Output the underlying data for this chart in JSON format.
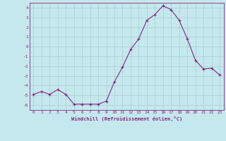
{
  "x": [
    0,
    1,
    2,
    3,
    4,
    5,
    6,
    7,
    8,
    9,
    10,
    11,
    12,
    13,
    14,
    15,
    16,
    17,
    18,
    19,
    20,
    21,
    22,
    23
  ],
  "y": [
    -4.9,
    -4.6,
    -4.9,
    -4.4,
    -4.9,
    -5.9,
    -5.9,
    -5.9,
    -5.9,
    -5.6,
    -3.6,
    -2.1,
    -0.3,
    0.8,
    2.7,
    3.3,
    4.2,
    3.8,
    2.7,
    0.8,
    -1.4,
    -2.3,
    -2.2,
    -2.9
  ],
  "line_color": "#7b2d7b",
  "marker": "+",
  "marker_size": 3,
  "bg_color": "#c5e8ee",
  "grid_color": "#aaccd4",
  "xlabel": "Windchill (Refroidissement éolien,°C)",
  "xlim": [
    -0.5,
    23.5
  ],
  "ylim": [
    -6.5,
    4.5
  ],
  "yticks": [
    -6,
    -5,
    -4,
    -3,
    -2,
    -1,
    0,
    1,
    2,
    3,
    4
  ],
  "xticks": [
    0,
    1,
    2,
    3,
    4,
    5,
    6,
    7,
    8,
    9,
    10,
    11,
    12,
    13,
    14,
    15,
    16,
    17,
    18,
    19,
    20,
    21,
    22,
    23
  ],
  "axis_color": "#7b2d7b",
  "label_color": "#7b2d7b",
  "tick_color": "#7b2d7b"
}
